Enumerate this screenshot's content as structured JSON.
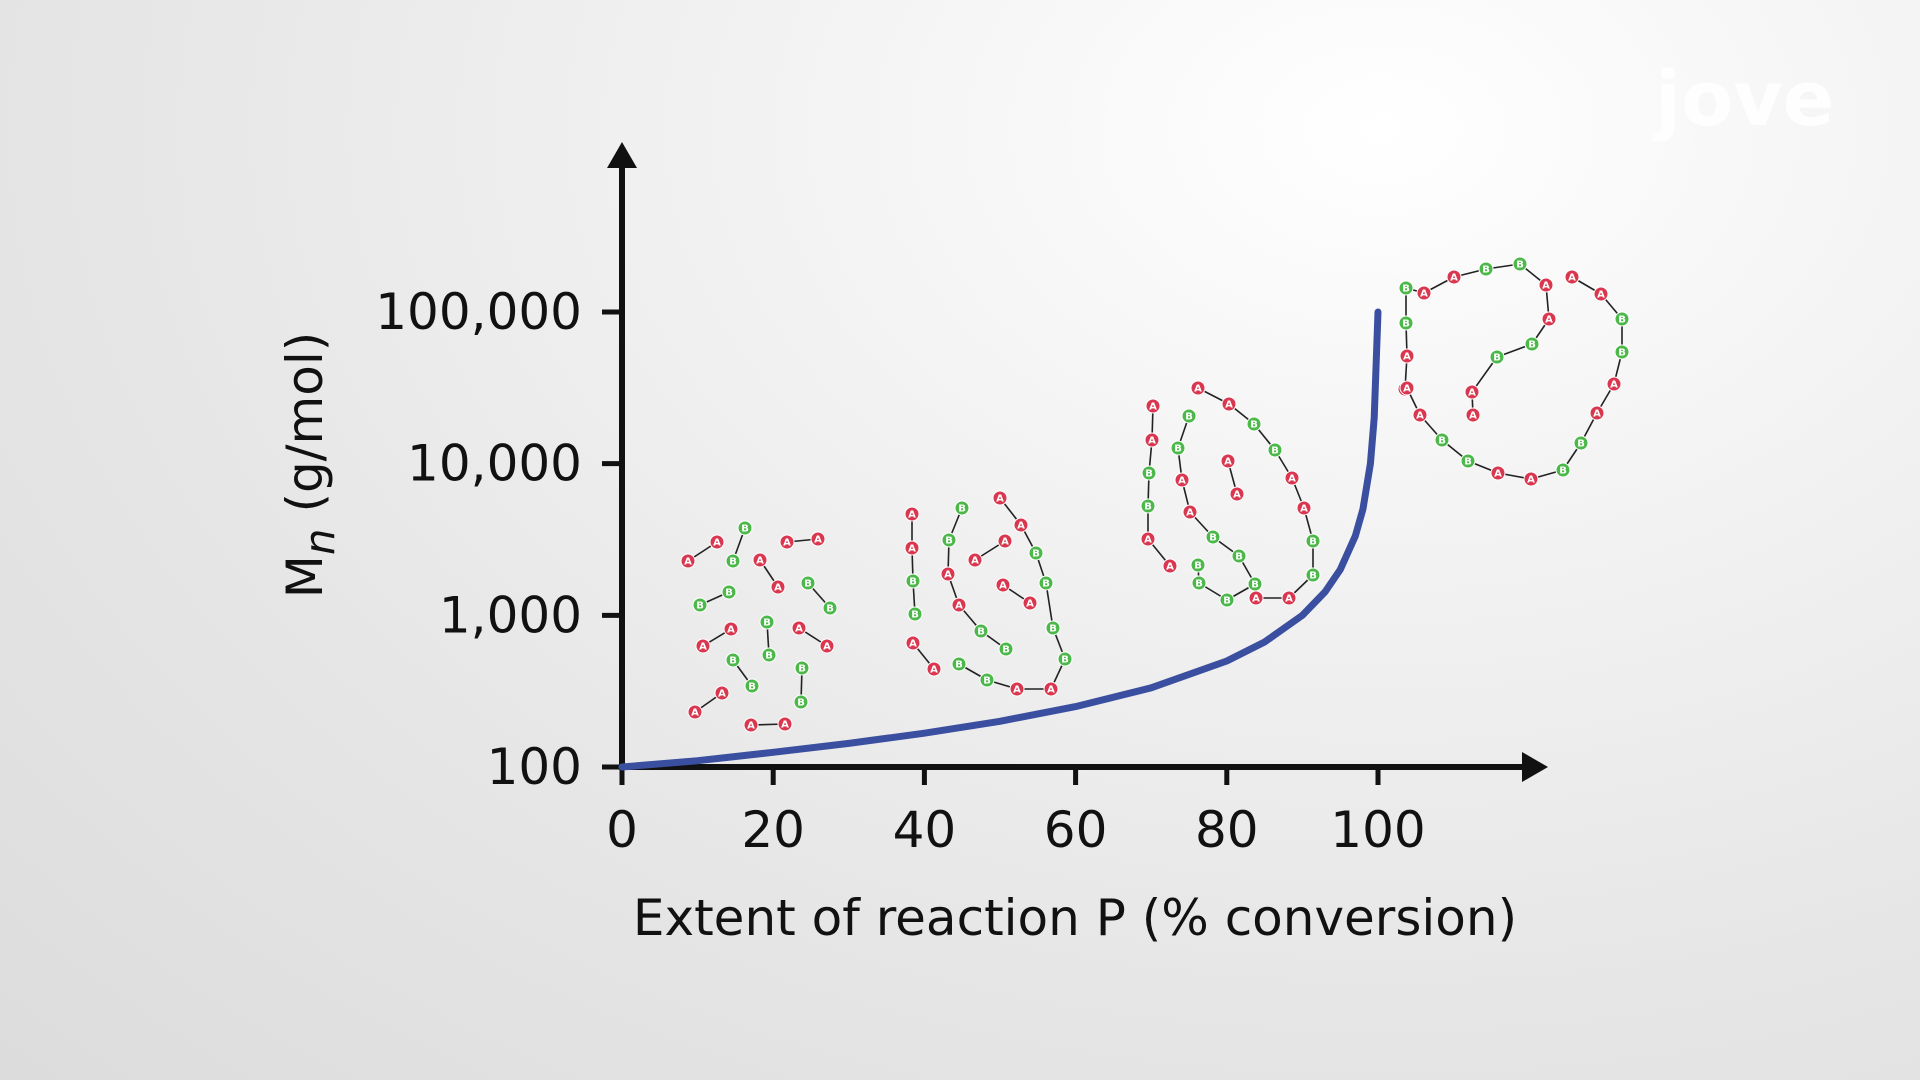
{
  "brand": {
    "logo_text": "jove"
  },
  "chart_data": {
    "type": "line",
    "xlabel": "Extent of reaction P (% conversion)",
    "ylabel": "M",
    "ylabel_sub": "n",
    "ylabel_unit": " (g/mol)",
    "y_scale": "log",
    "xlim": [
      0,
      120
    ],
    "ylim": [
      100,
      100000
    ],
    "x_ticks": [
      0,
      20,
      40,
      60,
      80,
      100
    ],
    "x_tick_labels": [
      "0",
      "20",
      "40",
      "60",
      "80",
      "100"
    ],
    "y_ticks": [
      100,
      1000,
      10000,
      100000
    ],
    "y_tick_labels": [
      "100",
      "1,000",
      "10,000",
      "100,000"
    ],
    "grid": false,
    "series": [
      {
        "color": "#3b4fa0",
        "x": [
          0,
          10,
          20,
          30,
          40,
          50,
          60,
          70,
          80,
          85,
          90,
          93,
          95,
          97,
          98,
          99,
          99.5,
          100
        ],
        "y": [
          100,
          110,
          125,
          143,
          167,
          200,
          250,
          333,
          500,
          667,
          1000,
          1430,
          2000,
          3330,
          5000,
          10000,
          20000,
          100000
        ]
      }
    ],
    "annotations": {
      "monomer_labels": [
        "A",
        "B"
      ],
      "monomer_colors": {
        "A": "#d9374f",
        "B": "#4cb84a"
      }
    }
  }
}
